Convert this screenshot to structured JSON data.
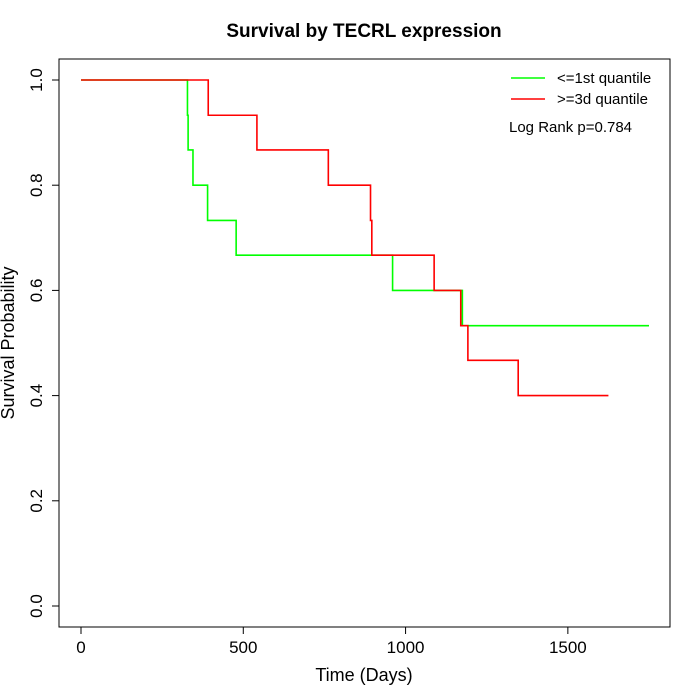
{
  "chart_data": {
    "type": "line",
    "title": "Survival by TECRL expression",
    "xlabel": "Time (Days)",
    "ylabel": "Survival Probability",
    "xlim": [
      0,
      1750
    ],
    "ylim": [
      0,
      1
    ],
    "x_ticks": [
      0,
      500,
      1000,
      1500
    ],
    "y_ticks": [
      0.0,
      0.2,
      0.4,
      0.6,
      0.8,
      1.0
    ],
    "y_tick_labels": [
      "0.0",
      "0.2",
      "0.4",
      "0.6",
      "0.8",
      "1.0"
    ],
    "grid": false,
    "legend_position": "top-right",
    "annotation": "Log Rank p=0.784",
    "series": [
      {
        "name": "<=1st quantile",
        "color": "#00ff00",
        "step": true,
        "x": [
          0,
          328,
          330,
          338,
          345,
          390,
          478,
          960,
          1175,
          1750
        ],
        "y": [
          1.0,
          0.933,
          0.867,
          0.867,
          0.8,
          0.733,
          0.667,
          0.6,
          0.533,
          0.533
        ]
      },
      {
        "name": ">=3d quantile",
        "color": "#ff0000",
        "step": true,
        "x": [
          0,
          392,
          542,
          762,
          892,
          896,
          1088,
          1170,
          1192,
          1347,
          1625
        ],
        "y": [
          1.0,
          0.933,
          0.867,
          0.8,
          0.733,
          0.667,
          0.6,
          0.533,
          0.467,
          0.4,
          0.4
        ]
      }
    ]
  }
}
